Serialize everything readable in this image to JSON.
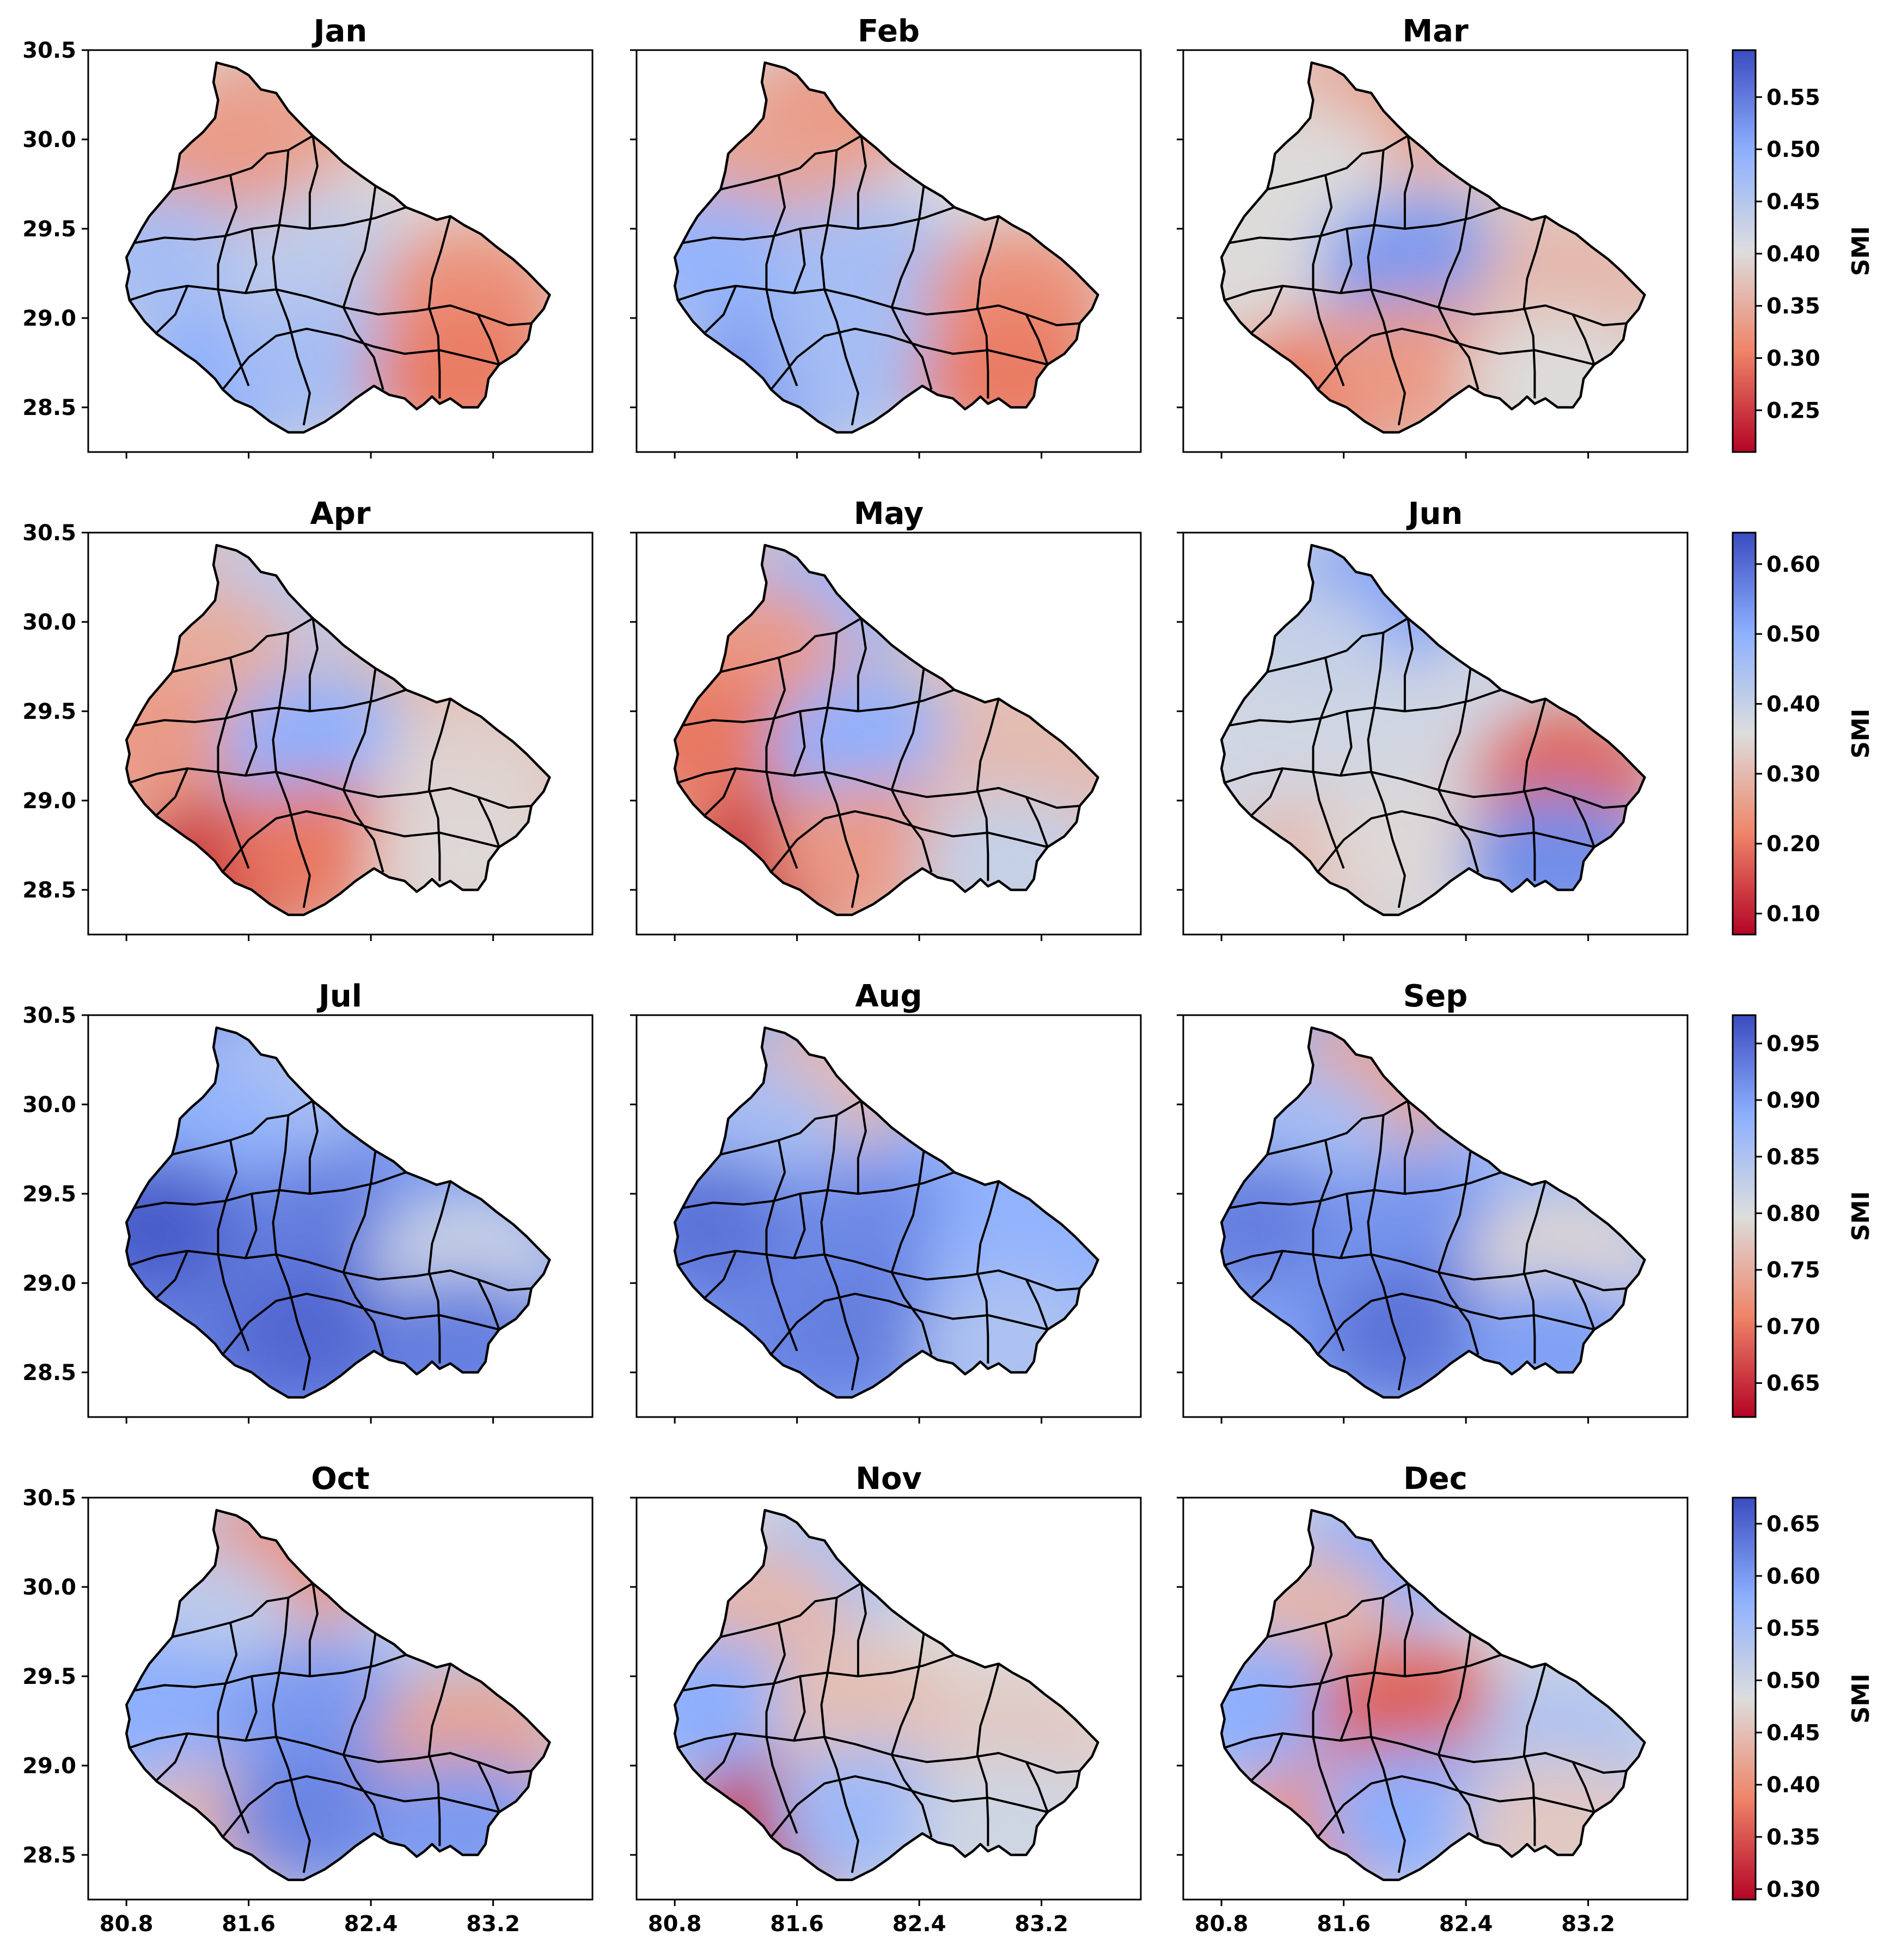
{
  "chart_data": {
    "type": "heatmap",
    "description_metric": "SMI",
    "xlim": [
      80.55,
      83.85
    ],
    "ylim": [
      28.25,
      30.5
    ],
    "x_ticks": [
      80.8,
      81.6,
      82.4,
      83.2
    ],
    "x_tick_labels": [
      "80.8",
      "81.6",
      "82.4",
      "83.2"
    ],
    "y_ticks": [
      28.5,
      29.0,
      29.5,
      30.0,
      30.5
    ],
    "y_tick_labels": [
      "28.5",
      "29.0",
      "29.5",
      "30.0",
      "30.5"
    ],
    "colormap": "coolwarm_r",
    "colors": {
      "low": "#b40426",
      "mid": "#dddddd",
      "high": "#3b4cc0"
    },
    "panels": [
      {
        "month": "Jan",
        "row": 0,
        "values": {
          "north": 0.34,
          "northwest": 0.33,
          "west": 0.47,
          "southwest": 0.5,
          "central": 0.44,
          "south": 0.47,
          "east": 0.32,
          "southeast": 0.3
        }
      },
      {
        "month": "Feb",
        "row": 0,
        "values": {
          "north": 0.33,
          "northwest": 0.34,
          "west": 0.49,
          "southwest": 0.52,
          "central": 0.47,
          "south": 0.47,
          "east": 0.32,
          "southeast": 0.3
        }
      },
      {
        "month": "Mar",
        "row": 0,
        "values": {
          "north": 0.34,
          "northwest": 0.4,
          "west": 0.4,
          "southwest": 0.3,
          "central": 0.52,
          "south": 0.33,
          "east": 0.36,
          "southeast": 0.4
        }
      },
      {
        "month": "Apr",
        "row": 1,
        "values": {
          "north": 0.42,
          "northwest": 0.28,
          "west": 0.25,
          "southwest": 0.12,
          "central": 0.5,
          "south": 0.2,
          "east": 0.34,
          "southeast": 0.35
        }
      },
      {
        "month": "May",
        "row": 1,
        "values": {
          "north": 0.48,
          "northwest": 0.25,
          "west": 0.2,
          "southwest": 0.12,
          "central": 0.5,
          "south": 0.25,
          "east": 0.3,
          "southeast": 0.4
        }
      },
      {
        "month": "Jun",
        "row": 1,
        "values": {
          "north": 0.52,
          "northwest": 0.4,
          "west": 0.38,
          "southwest": 0.3,
          "central": 0.38,
          "south": 0.35,
          "east": 0.18,
          "southeast": 0.55
        }
      },
      {
        "month": "Jul",
        "row": 2,
        "values": {
          "north": 0.85,
          "northwest": 0.88,
          "west": 0.96,
          "southwest": 0.93,
          "central": 0.93,
          "south": 0.95,
          "east": 0.82,
          "southeast": 0.93
        }
      },
      {
        "month": "Aug",
        "row": 2,
        "values": {
          "north": 0.76,
          "northwest": 0.86,
          "west": 0.94,
          "southwest": 0.92,
          "central": 0.92,
          "south": 0.93,
          "east": 0.88,
          "southeast": 0.85
        }
      },
      {
        "month": "Sep",
        "row": 2,
        "values": {
          "north": 0.74,
          "northwest": 0.86,
          "west": 0.93,
          "southwest": 0.9,
          "central": 0.91,
          "south": 0.94,
          "east": 0.79,
          "southeast": 0.9
        }
      },
      {
        "month": "Oct",
        "row": 3,
        "values": {
          "north": 0.4,
          "northwest": 0.52,
          "west": 0.58,
          "southwest": 0.44,
          "central": 0.6,
          "south": 0.62,
          "east": 0.42,
          "southeast": 0.6
        }
      },
      {
        "month": "Nov",
        "row": 3,
        "values": {
          "north": 0.54,
          "northwest": 0.44,
          "west": 0.58,
          "southwest": 0.32,
          "central": 0.45,
          "south": 0.56,
          "east": 0.46,
          "southeast": 0.5
        }
      },
      {
        "month": "Dec",
        "row": 3,
        "values": {
          "north": 0.58,
          "northwest": 0.44,
          "west": 0.58,
          "southwest": 0.4,
          "central": 0.36,
          "south": 0.58,
          "east": 0.54,
          "southeast": 0.46
        }
      }
    ],
    "colorbars": [
      {
        "label": "SMI",
        "min": 0.21,
        "max": 0.595,
        "ticks": [
          0.25,
          0.3,
          0.35,
          0.4,
          0.45,
          0.5,
          0.55
        ],
        "tick_labels": [
          "0.25",
          "0.30",
          "0.35",
          "0.40",
          "0.45",
          "0.50",
          "0.55"
        ]
      },
      {
        "label": "SMI",
        "min": 0.07,
        "max": 0.645,
        "ticks": [
          0.1,
          0.2,
          0.3,
          0.4,
          0.5,
          0.6
        ],
        "tick_labels": [
          "0.10",
          "0.20",
          "0.30",
          "0.40",
          "0.50",
          "0.60"
        ]
      },
      {
        "label": "SMI",
        "min": 0.62,
        "max": 0.975,
        "ticks": [
          0.65,
          0.7,
          0.75,
          0.8,
          0.85,
          0.9,
          0.95
        ],
        "tick_labels": [
          "0.65",
          "0.70",
          "0.75",
          "0.80",
          "0.85",
          "0.90",
          "0.95"
        ]
      },
      {
        "label": "SMI",
        "min": 0.29,
        "max": 0.675,
        "ticks": [
          0.3,
          0.35,
          0.4,
          0.45,
          0.5,
          0.55,
          0.6,
          0.65
        ],
        "tick_labels": [
          "0.30",
          "0.35",
          "0.40",
          "0.45",
          "0.50",
          "0.55",
          "0.60",
          "0.65"
        ]
      }
    ]
  }
}
